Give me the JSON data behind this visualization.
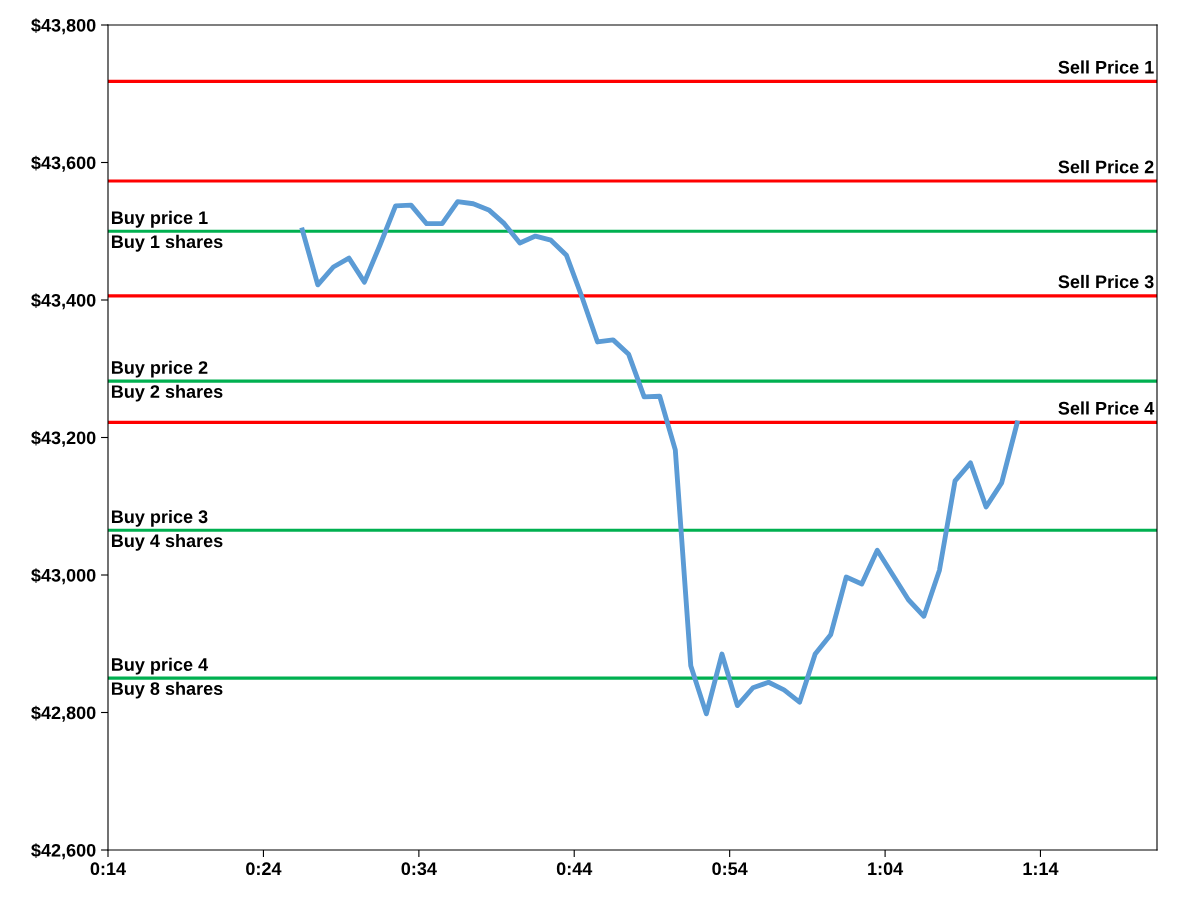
{
  "chart_data": {
    "type": "line",
    "x": [
      0.4417,
      0.4583,
      0.475,
      0.4917,
      0.5083,
      0.525,
      0.5417,
      0.5583,
      0.575,
      0.5917,
      0.6083,
      0.625,
      0.6417,
      0.6583,
      0.675,
      0.6917,
      0.7083,
      0.725,
      0.7417,
      0.7583,
      0.775,
      0.7917,
      0.8083,
      0.825,
      0.8417,
      0.8583,
      0.875,
      0.8917,
      0.9083,
      0.925,
      0.9417,
      0.9583,
      0.975,
      0.9917,
      1.0083,
      1.025,
      1.0417,
      1.0583,
      1.075,
      1.0917,
      1.1083,
      1.125,
      1.1417,
      1.1583,
      1.175,
      1.1917,
      1.2083
    ],
    "series": [
      {
        "color": "#5b9bd5",
        "values": [
          43502,
          43422,
          43448,
          43461,
          43426,
          43480,
          43537,
          43538,
          43511,
          43511,
          43543,
          43540,
          43531,
          43511,
          43483,
          43493,
          43487,
          43465,
          43404,
          43339,
          43342,
          43321,
          43259,
          43260,
          43182,
          42868,
          42798,
          42885,
          42810,
          42836,
          42844,
          42833,
          42815,
          42885,
          42913,
          42997,
          42987,
          43036,
          43000,
          42964,
          42940,
          43007,
          43137,
          43163,
          43099,
          43134,
          43221
        ]
      }
    ],
    "xlim": [
      0.2333,
      1.3583
    ],
    "xticks": [
      {
        "value": 0.2333,
        "label": "0:14"
      },
      {
        "value": 0.4,
        "label": "0:24"
      },
      {
        "value": 0.5667,
        "label": "0:34"
      },
      {
        "value": 0.7333,
        "label": "0:44"
      },
      {
        "value": 0.9,
        "label": "0:54"
      },
      {
        "value": 1.0667,
        "label": "1:04"
      },
      {
        "value": 1.2333,
        "label": "1:14"
      }
    ],
    "ylim": [
      42600,
      43800
    ],
    "yticks": [
      {
        "value": 42600,
        "label": "$42,600"
      },
      {
        "value": 42800,
        "label": "$42,800"
      },
      {
        "value": 43000,
        "label": "$43,000"
      },
      {
        "value": 43200,
        "label": "$43,200"
      },
      {
        "value": 43400,
        "label": "$43,400"
      },
      {
        "value": 43600,
        "label": "$43,600"
      },
      {
        "value": 43800,
        "label": "$43,800"
      }
    ],
    "ref_lines": [
      {
        "axis": "y",
        "value": 43718,
        "label": "Sell Price 1",
        "color": "#ff0000"
      },
      {
        "axis": "y",
        "value": 43573,
        "label": "Sell Price 2",
        "color": "#ff0000"
      },
      {
        "axis": "y",
        "value": 43500,
        "label": "Buy price 1\nBuy 1 shares",
        "color": "#00b050"
      },
      {
        "axis": "y",
        "value": 43406,
        "label": "Sell Price 3",
        "color": "#ff0000"
      },
      {
        "axis": "y",
        "value": 43282,
        "label": "Buy price 2\nBuy 2 shares",
        "color": "#00b050"
      },
      {
        "axis": "y",
        "value": 43222,
        "label": "Sell Price 4",
        "color": "#ff0000"
      },
      {
        "axis": "y",
        "value": 43065,
        "label": "Buy price 3\nBuy 4 shares",
        "color": "#00b050"
      },
      {
        "axis": "y",
        "value": 42850,
        "label": "Buy price 4\nBuy 8 shares",
        "color": "#00b050"
      }
    ],
    "grid": false,
    "legend": false,
    "marker": "none",
    "line_style": "solid"
  }
}
